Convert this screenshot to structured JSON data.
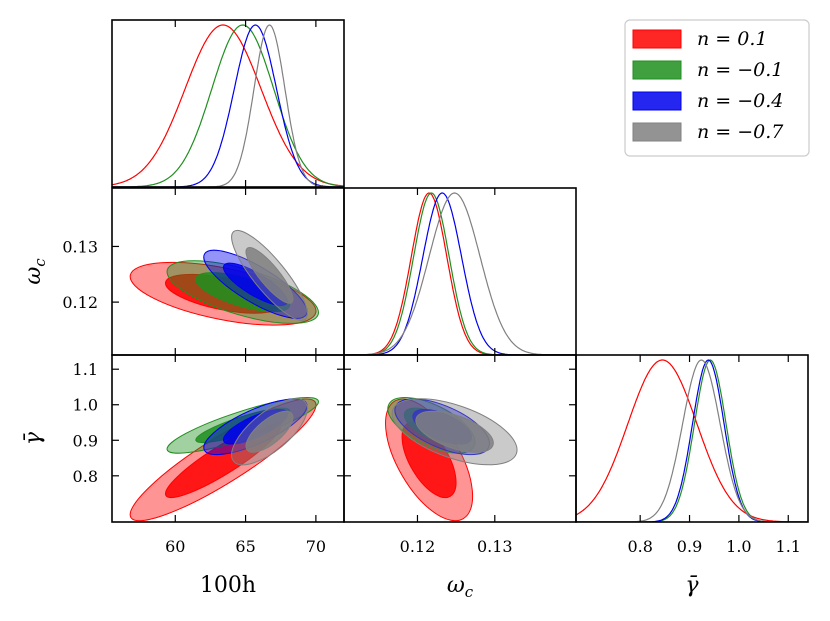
{
  "chart_data": {
    "type": "triangle_corner_plot",
    "parameters": [
      {
        "key": "h100",
        "label": "100h",
        "ticks": [
          60,
          65,
          70
        ],
        "tick_labels": [
          "60",
          "65",
          "70"
        ],
        "range": [
          55.5,
          72.0
        ]
      },
      {
        "key": "omega_c",
        "label": "ω",
        "label_sub": "c",
        "ticks": [
          0.12,
          0.13
        ],
        "tick_labels": [
          "0.12",
          "0.13"
        ],
        "range": [
          0.1105,
          0.1405
        ]
      },
      {
        "key": "gamma_bar",
        "label": "γ̄",
        "ticks": [
          0.8,
          0.9,
          1.0,
          1.1
        ],
        "tick_labels": [
          "0.8",
          "0.9",
          "1.0",
          "1.1"
        ],
        "range": [
          0.67,
          1.14
        ]
      }
    ],
    "legend": {
      "placement": "top-right",
      "entries": [
        {
          "label": "n = 0.1",
          "color": "#ff0000"
        },
        {
          "label": "n = −0.1",
          "color": "#1f8f1f"
        },
        {
          "label": "n = −0.4",
          "color": "#0000ee"
        },
        {
          "label": "n = −0.7",
          "color": "#808080"
        }
      ]
    },
    "series": [
      {
        "name": "n = 0.1",
        "color": "#ff0000",
        "mean": {
          "h100": 63.4,
          "omega_c": 0.1215,
          "gamma_bar": 0.845
        },
        "sigma": {
          "h100": 2.7,
          "omega_c": 0.0023,
          "gamma_bar": 0.07
        },
        "corr": {
          "h100_omega_c": -0.55,
          "h100_gamma_bar": 0.9,
          "omega_c_gamma_bar": -0.6
        }
      },
      {
        "name": "n = −0.1",
        "color": "#1f8f1f",
        "mean": {
          "h100": 64.8,
          "omega_c": 0.1218,
          "gamma_bar": 0.942
        },
        "sigma": {
          "h100": 2.2,
          "omega_c": 0.0023,
          "gamma_bar": 0.032
        },
        "corr": {
          "h100_omega_c": -0.65,
          "h100_gamma_bar": 0.85,
          "omega_c_gamma_bar": -0.6
        }
      },
      {
        "name": "n = −0.4",
        "color": "#0000ee",
        "mean": {
          "h100": 65.7,
          "omega_c": 0.1232,
          "gamma_bar": 0.938
        },
        "sigma": {
          "h100": 1.5,
          "omega_c": 0.0025,
          "gamma_bar": 0.032
        },
        "corr": {
          "h100_omega_c": -0.8,
          "h100_gamma_bar": 0.75,
          "omega_c_gamma_bar": -0.6
        }
      },
      {
        "name": "n = −0.7",
        "color": "#808080",
        "mean": {
          "h100": 66.7,
          "omega_c": 0.1248,
          "gamma_bar": 0.924
        },
        "sigma": {
          "h100": 1.1,
          "omega_c": 0.0033,
          "gamma_bar": 0.038
        },
        "corr": {
          "h100_omega_c": -0.85,
          "h100_gamma_bar": 0.7,
          "omega_c_gamma_bar": -0.55
        }
      }
    ],
    "contour_levels": [
      "68%",
      "95%"
    ]
  }
}
